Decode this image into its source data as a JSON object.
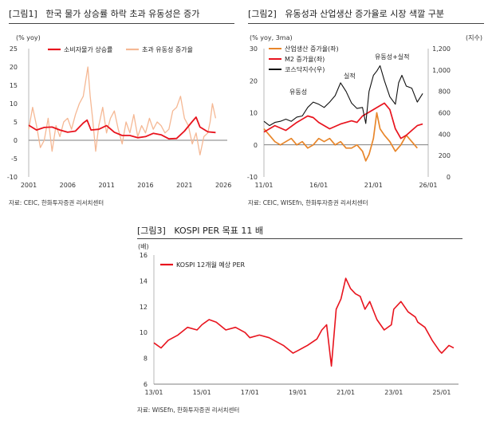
{
  "figures": [
    {
      "label": "[그림1]",
      "title": "한국 물가 상승률 하락 초과 유동성은 증가",
      "source": "자료: CEIC, 한화투자증권 리서치센터"
    },
    {
      "label": "[그림2]",
      "title": "유동성과 산업생산 증가율로 시장 색깔 구분",
      "source": "자료: CEIC, WISEfn, 한화투자증권 리서치센터"
    },
    {
      "label": "[그림3]",
      "title": "KOSPI PER 목표 11 배",
      "source": "자료: WISEfn, 한화투자증권 리서치센터"
    }
  ],
  "chart_data": [
    {
      "type": "line",
      "unit_label": "(% yoy)",
      "ylim": [
        -10,
        25
      ],
      "yticks": [
        -10,
        -5,
        0,
        5,
        10,
        15,
        20,
        25
      ],
      "xticks": [
        "2001",
        "2006",
        "2011",
        "2016",
        "2021",
        "2026"
      ],
      "xticks_pos": [
        2001,
        2006,
        2011,
        2016,
        2021,
        2026
      ],
      "xlim": [
        2001,
        2026.5
      ],
      "legend_position": "top-left",
      "colors": {
        "소비자물가 상승률": "#e8141e",
        "초과 유동성 증가율": "#f5b894"
      },
      "series": [
        {
          "name": "초과 유동성 증가율",
          "x": [
            2001,
            2001.5,
            2002,
            2002.5,
            2003,
            2003.5,
            2004,
            2004.5,
            2005,
            2005.5,
            2006,
            2006.5,
            2007,
            2007.5,
            2008,
            2008.3,
            2008.6,
            2008.9,
            2009.2,
            2009.6,
            2010,
            2010.5,
            2011,
            2011.5,
            2012,
            2012.5,
            2013,
            2013.5,
            2014,
            2014.5,
            2015,
            2015.5,
            2016,
            2016.5,
            2017,
            2017.5,
            2018,
            2018.5,
            2019,
            2019.5,
            2020,
            2020.5,
            2021,
            2021.5,
            2022,
            2022.5,
            2023,
            2023.5,
            2024,
            2024.3,
            2024.6,
            2025
          ],
          "values": [
            3,
            9,
            4,
            -2,
            0,
            6,
            -3,
            4,
            1,
            5,
            6,
            3,
            7,
            10,
            12,
            16,
            20,
            12,
            6,
            -3,
            4,
            9,
            2,
            6,
            8,
            3,
            -1,
            5,
            2,
            7,
            1,
            4,
            2,
            6,
            3,
            5,
            4,
            2,
            3,
            8,
            9,
            12,
            6,
            4,
            -1,
            2,
            -4,
            1,
            2,
            5,
            10,
            6
          ]
        },
        {
          "name": "소비자물가 상승률",
          "x": [
            2001,
            2002,
            2003,
            2004,
            2005,
            2006,
            2007,
            2008,
            2008.5,
            2009,
            2010,
            2011,
            2012,
            2013,
            2014,
            2015,
            2016,
            2017,
            2018,
            2019,
            2020,
            2021,
            2022,
            2022.5,
            2023,
            2024,
            2025
          ],
          "values": [
            4.1,
            2.8,
            3.5,
            3.6,
            2.8,
            2.2,
            2.5,
            4.7,
            5.5,
            2.8,
            3,
            4,
            2.2,
            1.3,
            1.3,
            0.7,
            1,
            1.9,
            1.5,
            0.4,
            0.5,
            2.5,
            5.1,
            6.3,
            3.6,
            2.3,
            2.1
          ]
        }
      ]
    },
    {
      "type": "line",
      "unit_label_left": "(% yoy, 3ma)",
      "unit_label_right": "(지수)",
      "ylim_left": [
        -10,
        30
      ],
      "yticks_left": [
        -10,
        0,
        10,
        20,
        30
      ],
      "ylim_right": [
        0,
        1200
      ],
      "yticks_right": [
        "0",
        "200",
        "400",
        "600",
        "800",
        "1,000",
        "1,200"
      ],
      "yticks_right_vals": [
        0,
        200,
        400,
        600,
        800,
        1000,
        1200
      ],
      "xticks": [
        "11/01",
        "16/01",
        "21/01",
        "26/01"
      ],
      "xticks_pos": [
        2011,
        2016,
        2021,
        2026
      ],
      "xlim": [
        2011,
        2026
      ],
      "legend_position": "top-left",
      "annotations": [
        "유동성",
        "실적",
        "유동성+실적"
      ],
      "colors": {
        "산업생산 증가율(좌)": "#e8862a",
        "M2 증가율(좌)": "#e8141e",
        "코스닥지수(우)": "#111111"
      },
      "series": [
        {
          "name": "산업생산 증가율(좌)",
          "axis": "left",
          "x": [
            2011,
            2011.5,
            2012,
            2012.5,
            2013,
            2013.5,
            2014,
            2014.5,
            2015,
            2015.5,
            2016,
            2016.5,
            2017,
            2017.5,
            2018,
            2018.5,
            2019,
            2019.5,
            2020,
            2020.3,
            2020.6,
            2021,
            2021.3,
            2021.6,
            2022,
            2022.5,
            2023,
            2023.5,
            2024,
            2024.5,
            2025
          ],
          "values": [
            5,
            3,
            1,
            0,
            1,
            2,
            0,
            1,
            -1,
            0,
            2,
            1,
            2,
            0,
            1,
            -1,
            -1,
            0,
            -2,
            -5,
            -3,
            2,
            10,
            5,
            3,
            1,
            -2,
            0,
            3,
            1,
            -1
          ]
        },
        {
          "name": "M2 증가율(좌)",
          "axis": "left",
          "x": [
            2011,
            2012,
            2013,
            2014,
            2015,
            2015.5,
            2016,
            2017,
            2018,
            2019,
            2019.5,
            2020,
            2020.5,
            2021,
            2021.5,
            2022,
            2022.5,
            2023,
            2023.5,
            2024,
            2024.5,
            2025,
            2025.5
          ],
          "values": [
            4,
            6,
            4.5,
            7,
            9,
            8.5,
            7,
            5,
            6.5,
            7.5,
            7,
            9,
            10,
            11,
            12,
            13,
            11,
            5,
            2,
            3,
            4.5,
            6,
            6.5
          ]
        },
        {
          "name": "코스닥지수(우)",
          "axis": "right",
          "x": [
            2011,
            2011.5,
            2012,
            2012.5,
            2013,
            2013.5,
            2014,
            2014.5,
            2015,
            2015.5,
            2016,
            2016.5,
            2017,
            2017.5,
            2018,
            2018.5,
            2019,
            2019.5,
            2020,
            2020.3,
            2020.6,
            2021,
            2021.3,
            2021.6,
            2022,
            2022.5,
            2023,
            2023.3,
            2023.6,
            2024,
            2024.5,
            2025,
            2025.5
          ],
          "values": [
            520,
            480,
            510,
            520,
            540,
            520,
            560,
            570,
            650,
            700,
            680,
            650,
            700,
            760,
            880,
            800,
            690,
            640,
            650,
            500,
            800,
            950,
            990,
            1040,
            900,
            750,
            680,
            880,
            950,
            850,
            830,
            700,
            780
          ]
        }
      ]
    },
    {
      "type": "line",
      "unit_label": "(배)",
      "ylim": [
        6,
        16
      ],
      "yticks": [
        6,
        8,
        10,
        12,
        14,
        16
      ],
      "xticks": [
        "13/01",
        "15/01",
        "17/01",
        "19/01",
        "21/01",
        "23/01",
        "25/01"
      ],
      "xticks_pos": [
        2013,
        2015,
        2017,
        2019,
        2021,
        2023,
        2025
      ],
      "xlim": [
        2013,
        2025.7
      ],
      "legend_position": "top-left",
      "colors": {
        "KOSPI 12개월 예상 PER": "#e8141e"
      },
      "series": [
        {
          "name": "KOSPI 12개월 예상 PER",
          "x": [
            2013,
            2013.3,
            2013.6,
            2014,
            2014.4,
            2014.8,
            2015,
            2015.3,
            2015.6,
            2016,
            2016.4,
            2016.8,
            2017,
            2017.4,
            2017.8,
            2018,
            2018.4,
            2018.8,
            2019,
            2019.4,
            2019.8,
            2020,
            2020.2,
            2020.4,
            2020.6,
            2020.8,
            2021,
            2021.2,
            2021.4,
            2021.6,
            2021.8,
            2022,
            2022.3,
            2022.6,
            2022.9,
            2023,
            2023.3,
            2023.6,
            2023.9,
            2024,
            2024.3,
            2024.6,
            2024.9,
            2025,
            2025.3,
            2025.5
          ],
          "values": [
            9.2,
            8.8,
            9.4,
            9.8,
            10.4,
            10.2,
            10.6,
            11,
            10.8,
            10.2,
            10.4,
            10,
            9.6,
            9.8,
            9.6,
            9.4,
            9,
            8.4,
            8.6,
            9,
            9.5,
            10.2,
            10.6,
            7.4,
            11.8,
            12.6,
            14.2,
            13.4,
            13,
            12.8,
            11.8,
            12.4,
            11,
            10.2,
            10.6,
            11.8,
            12.4,
            11.6,
            11.2,
            10.8,
            10.4,
            9.4,
            8.6,
            8.4,
            9,
            8.8
          ]
        }
      ]
    }
  ]
}
